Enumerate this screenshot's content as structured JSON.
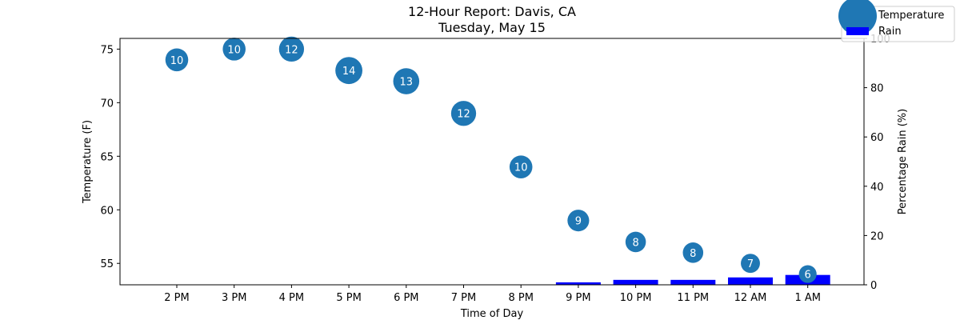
{
  "chart_data": {
    "type": "scatter",
    "title": "12-Hour Report: Davis, CA",
    "subtitle": "Tuesday, May 15",
    "xlabel": "Time of Day",
    "ylabel": "Temperature (F)",
    "y2label": "Percentage Rain (%)",
    "categories": [
      "2 PM",
      "3 PM",
      "4 PM",
      "5 PM",
      "6 PM",
      "7 PM",
      "8 PM",
      "9 PM",
      "10 PM",
      "11 PM",
      "12 AM",
      "1 AM"
    ],
    "ylim": [
      53,
      76
    ],
    "y2lim": [
      0,
      100
    ],
    "yticks": [
      55,
      60,
      65,
      70,
      75
    ],
    "y2ticks": [
      0,
      20,
      40,
      60,
      80,
      100
    ],
    "series": [
      {
        "name": "Temperature",
        "kind": "bubble",
        "color": "#1f77b4",
        "values": [
          74,
          75,
          75,
          73,
          72,
          69,
          64,
          59,
          57,
          56,
          55,
          54
        ],
        "sizes": [
          10,
          10,
          12,
          14,
          13,
          12,
          10,
          9,
          8,
          8,
          7,
          6
        ]
      },
      {
        "name": "Rain",
        "kind": "bar",
        "color": "#0000ff",
        "axis": "right",
        "values": [
          0,
          0,
          0,
          0,
          0,
          0,
          0,
          1,
          2,
          2,
          3,
          4
        ]
      }
    ],
    "legend": "top-right",
    "grid": false
  }
}
